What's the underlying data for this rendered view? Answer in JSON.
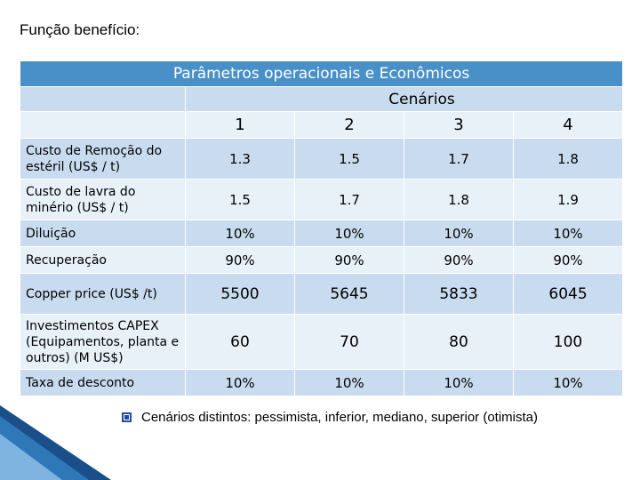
{
  "title": "Função benefício:",
  "table": {
    "header": "Parâmetros operacionais e Econômicos",
    "cenarios_label": "Cenários",
    "scenarios": [
      "1",
      "2",
      "3",
      "4"
    ],
    "rows": [
      {
        "label": "Custo de Remoção do estéril (US$ / t)",
        "values": [
          "1.3",
          "1.5",
          "1.7",
          "1.8"
        ]
      },
      {
        "label": "Custo de lavra do minério (US$ / t)",
        "values": [
          "1.5",
          "1.7",
          "1.8",
          "1.9"
        ]
      },
      {
        "label": "Diluição",
        "values": [
          "10%",
          "10%",
          "10%",
          "10%"
        ]
      },
      {
        "label": "Recuperação",
        "values": [
          "90%",
          "90%",
          "90%",
          "90%"
        ]
      },
      {
        "label": "Copper price (US$ /t)",
        "values": [
          "5500",
          "5645",
          "5833",
          "6045"
        ]
      },
      {
        "label": "Investimentos CAPEX (Equipamentos, planta e outros) (M US$)",
        "values": [
          "60",
          "70",
          "80",
          "100"
        ]
      },
      {
        "label": "Taxa de desconto",
        "values": [
          "10%",
          "10%",
          "10%",
          "10%"
        ]
      }
    ]
  },
  "bullet": "Cenários distintos: pessimista, inferior, mediano, superior (otimista)",
  "colors": {
    "header_bg": "#4a90c8",
    "row_dark": "#c9dcef",
    "row_light": "#e8f0f8",
    "bullet": "#1f4e9a",
    "decoration": "#1a4f8a"
  }
}
